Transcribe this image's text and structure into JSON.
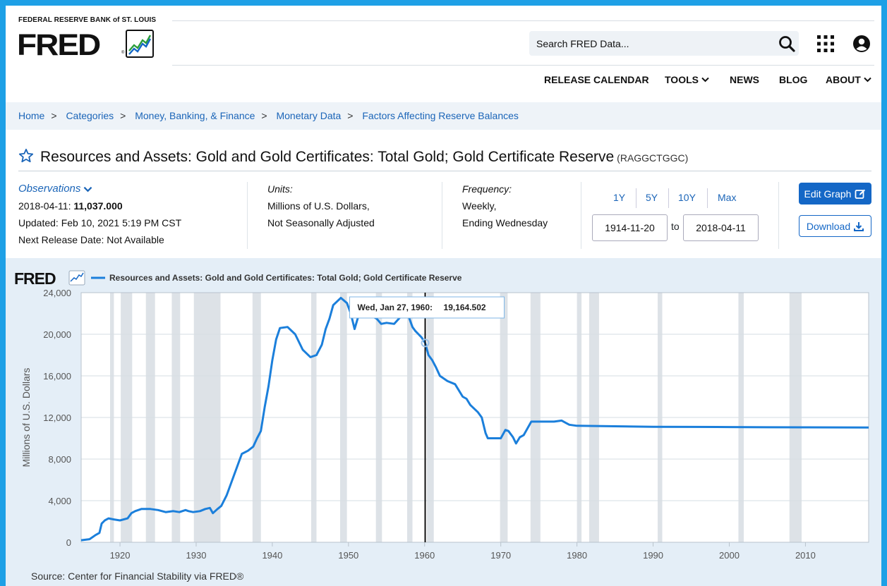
{
  "header": {
    "org": "FEDERAL RESERVE BANK of ST. LOUIS",
    "logo": "FRED",
    "logo_mark": "®",
    "search_placeholder": "Search FRED Data...",
    "nav": [
      {
        "label": "RELEASE CALENDAR",
        "dropdown": false
      },
      {
        "label": "TOOLS",
        "dropdown": true
      },
      {
        "label": "NEWS",
        "dropdown": false
      },
      {
        "label": "BLOG",
        "dropdown": false
      },
      {
        "label": "ABOUT",
        "dropdown": true
      }
    ],
    "icons": [
      "search-icon",
      "apps-grid-icon",
      "account-icon"
    ]
  },
  "breadcrumb": [
    "Home",
    "Categories",
    "Money, Banking, & Finance",
    "Monetary Data",
    "Factors Affecting Reserve Balances"
  ],
  "series": {
    "title": "Resources and Assets: Gold and Gold Certificates: Total Gold; Gold Certificate Reserve",
    "id": "(RAGGCTGGC)"
  },
  "observations": {
    "label": "Observations",
    "date": "2018-04-11:",
    "value": "11,037.000",
    "updated": "Updated: Feb 10, 2021 5:19 PM CST",
    "next_release": "Next Release Date: Not Available"
  },
  "units": {
    "label": "Units:",
    "line1": "Millions of U.S. Dollars,",
    "line2": "Not Seasonally Adjusted"
  },
  "frequency": {
    "label": "Frequency:",
    "line1": "Weekly,",
    "line2": "Ending Wednesday"
  },
  "range": {
    "buttons": [
      "1Y",
      "5Y",
      "10Y",
      "Max"
    ],
    "start": "1914-11-20",
    "to": "to",
    "end": "2018-04-11"
  },
  "actions": {
    "edit": "Edit Graph",
    "download": "Download"
  },
  "colors": {
    "accent": "#1467c6",
    "line": "#1b7fdb",
    "recession": "#dde2e7"
  },
  "chart_data": {
    "type": "line",
    "logo": "FRED",
    "legend": "Resources and Assets: Gold and Gold Certificates: Total Gold; Gold Certificate Reserve",
    "legend_position": "top-left",
    "ylabel": "Millions of U.S. Dollars",
    "xlabel": "",
    "ylim": [
      0,
      24000
    ],
    "xlim": [
      1914.9,
      2018.3
    ],
    "y_ticks": [
      "0",
      "4,000",
      "8,000",
      "12,000",
      "16,000",
      "20,000",
      "24,000"
    ],
    "y_tick_values": [
      0,
      4000,
      8000,
      12000,
      16000,
      20000,
      24000
    ],
    "x_ticks": [
      "1920",
      "1930",
      "1940",
      "1950",
      "1960",
      "1970",
      "1980",
      "1990",
      "2000",
      "2010"
    ],
    "x_tick_values": [
      1920,
      1930,
      1940,
      1950,
      1960,
      1970,
      1980,
      1990,
      2000,
      2010
    ],
    "grid": true,
    "recessions": [
      [
        1918.7,
        1919.2
      ],
      [
        1920.1,
        1921.6
      ],
      [
        1923.4,
        1924.6
      ],
      [
        1926.8,
        1927.9
      ],
      [
        1929.7,
        1933.2
      ],
      [
        1937.4,
        1938.5
      ],
      [
        1945.1,
        1945.8
      ],
      [
        1948.9,
        1949.8
      ],
      [
        1953.6,
        1954.4
      ],
      [
        1957.7,
        1958.4
      ],
      [
        1960.3,
        1961.2
      ],
      [
        1969.9,
        1970.9
      ],
      [
        1973.9,
        1975.2
      ],
      [
        1980.0,
        1980.6
      ],
      [
        1981.6,
        1982.9
      ],
      [
        1990.6,
        1991.2
      ],
      [
        2001.2,
        2001.9
      ],
      [
        2007.9,
        2009.5
      ]
    ],
    "tooltip": {
      "label": "Wed, Jan 27, 1960:",
      "value": "19,164.502",
      "x": 1960.07,
      "y": 19164.502
    },
    "x": [
      1914.9,
      1916.0,
      1916.8,
      1917.3,
      1917.6,
      1918.0,
      1918.5,
      1919.2,
      1920.0,
      1921.0,
      1921.5,
      1922.0,
      1922.8,
      1924.0,
      1925.0,
      1926.0,
      1927.0,
      1927.8,
      1928.6,
      1929.0,
      1929.6,
      1930.5,
      1931.2,
      1931.8,
      1932.2,
      1932.8,
      1933.3,
      1934.0,
      1934.5,
      1935.0,
      1935.5,
      1936.0,
      1936.8,
      1937.5,
      1938.0,
      1938.5,
      1939.0,
      1939.5,
      1940.0,
      1940.5,
      1941.0,
      1942.0,
      1943.0,
      1944.0,
      1945.0,
      1945.8,
      1946.5,
      1947.0,
      1947.5,
      1948.0,
      1949.0,
      1949.8,
      1950.3,
      1950.8,
      1951.2,
      1951.8,
      1952.2,
      1952.8,
      1953.2,
      1953.7,
      1954.3,
      1955.0,
      1956.0,
      1957.0,
      1957.6,
      1958.0,
      1958.4,
      1958.8,
      1959.2,
      1959.6,
      1960.07,
      1960.5,
      1961.0,
      1961.5,
      1962.0,
      1963.0,
      1964.0,
      1965.0,
      1965.5,
      1966.0,
      1967.0,
      1967.5,
      1968.0,
      1968.3,
      1969.0,
      1970.0,
      1970.6,
      1971.0,
      1971.6,
      1972.0,
      1972.5,
      1973.0,
      1974.0,
      1975.0,
      1976.0,
      1977.0,
      1978.0,
      1978.5,
      1979.0,
      1980.0,
      1985.0,
      1990.0,
      1995.0,
      2000.0,
      2005.0,
      2010.0,
      2018.3
    ],
    "y": [
      200,
      300,
      700,
      900,
      1800,
      2100,
      2300,
      2200,
      2100,
      2300,
      2800,
      3000,
      3200,
      3200,
      3100,
      2900,
      3000,
      2900,
      3100,
      3000,
      2900,
      3000,
      3200,
      3300,
      2800,
      3200,
      3500,
      4500,
      5500,
      6500,
      7500,
      8500,
      8800,
      9200,
      10000,
      10700,
      13000,
      15000,
      17500,
      19500,
      20600,
      20700,
      20000,
      18500,
      17800,
      18000,
      19000,
      20500,
      21500,
      22800,
      23500,
      23000,
      22000,
      20500,
      21500,
      22800,
      22500,
      22000,
      21700,
      21500,
      21000,
      21100,
      21000,
      21800,
      22500,
      21500,
      20700,
      20300,
      20000,
      19700,
      19165,
      18000,
      17500,
      16800,
      16000,
      15500,
      15200,
      14000,
      13800,
      13200,
      12500,
      12000,
      10500,
      10000,
      10000,
      10000,
      10800,
      10700,
      10100,
      9500,
      10100,
      10300,
      11600,
      11600,
      11600,
      11600,
      11700,
      11500,
      11300,
      11200,
      11150,
      11100,
      11090,
      11080,
      11060,
      11050,
      11037
    ]
  },
  "source": "Source: Center for Financial Stability via FRED®"
}
